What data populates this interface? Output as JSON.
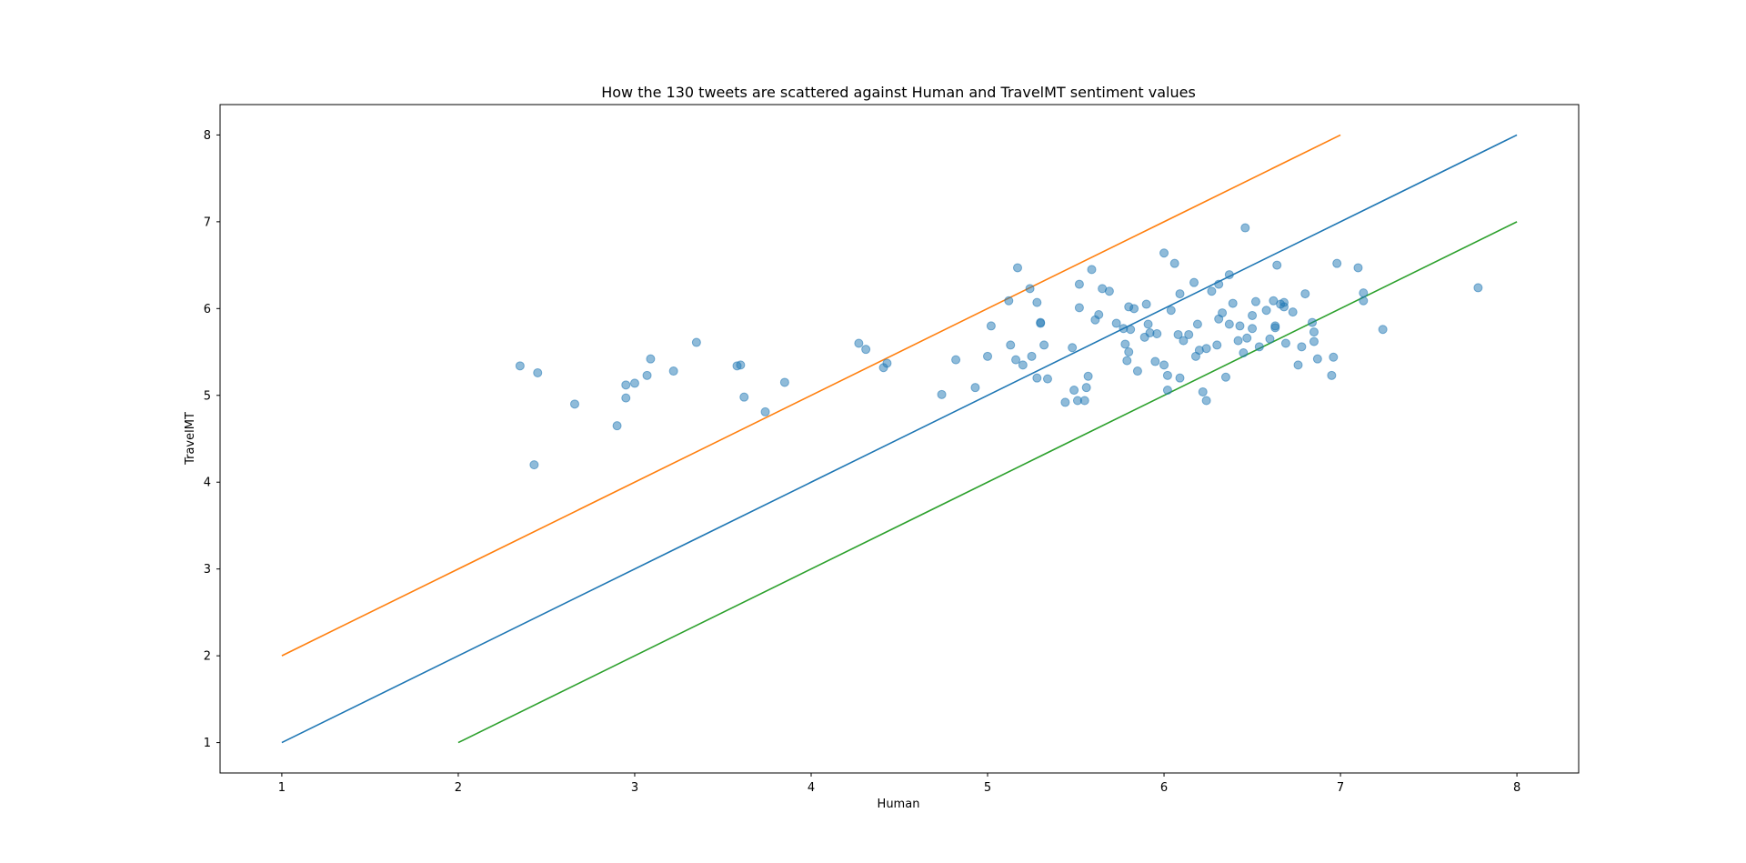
{
  "chart_data": {
    "type": "scatter",
    "title": "How the 130 tweets are scattered against Human and TravelMT sentiment values",
    "xlabel": "Human",
    "ylabel": "TravelMT",
    "xlim": [
      0.65,
      8.35
    ],
    "ylim": [
      0.65,
      8.35
    ],
    "xticks": [
      1,
      2,
      3,
      4,
      5,
      6,
      7,
      8
    ],
    "yticks": [
      1,
      2,
      3,
      4,
      5,
      6,
      7,
      8
    ],
    "grid": false,
    "colors": {
      "points": "#1f77b4",
      "diagonal": "#1f77b4",
      "upper": "#ff7f0e",
      "lower": "#2ca02c"
    },
    "lines": [
      {
        "id": "diagonal",
        "x": [
          1,
          8
        ],
        "y": [
          1,
          8
        ]
      },
      {
        "id": "upper",
        "x": [
          1,
          7
        ],
        "y": [
          2,
          8
        ]
      },
      {
        "id": "lower",
        "x": [
          2,
          8
        ],
        "y": [
          1,
          7
        ]
      }
    ],
    "points": [
      [
        2.35,
        5.34
      ],
      [
        2.45,
        5.26
      ],
      [
        2.43,
        4.2
      ],
      [
        2.66,
        4.9
      ],
      [
        2.9,
        4.65
      ],
      [
        2.95,
        4.97
      ],
      [
        2.95,
        5.12
      ],
      [
        3.0,
        5.14
      ],
      [
        3.07,
        5.23
      ],
      [
        3.09,
        5.42
      ],
      [
        3.22,
        5.28
      ],
      [
        3.35,
        5.61
      ],
      [
        3.58,
        5.34
      ],
      [
        3.6,
        5.35
      ],
      [
        3.62,
        4.98
      ],
      [
        3.74,
        4.81
      ],
      [
        3.85,
        5.15
      ],
      [
        4.27,
        5.6
      ],
      [
        4.31,
        5.53
      ],
      [
        4.41,
        5.32
      ],
      [
        4.43,
        5.37
      ],
      [
        4.74,
        5.01
      ],
      [
        4.82,
        5.41
      ],
      [
        4.93,
        5.09
      ],
      [
        5.0,
        5.45
      ],
      [
        5.02,
        5.8
      ],
      [
        5.12,
        6.09
      ],
      [
        5.13,
        5.58
      ],
      [
        5.16,
        5.41
      ],
      [
        5.17,
        6.47
      ],
      [
        5.2,
        5.35
      ],
      [
        5.24,
        6.23
      ],
      [
        5.25,
        5.45
      ],
      [
        5.28,
        6.07
      ],
      [
        5.28,
        5.2
      ],
      [
        5.3,
        5.83
      ],
      [
        5.3,
        5.84
      ],
      [
        5.32,
        5.58
      ],
      [
        5.34,
        5.19
      ],
      [
        5.44,
        4.92
      ],
      [
        5.48,
        5.55
      ],
      [
        5.49,
        5.06
      ],
      [
        5.51,
        4.94
      ],
      [
        5.52,
        6.01
      ],
      [
        5.52,
        6.28
      ],
      [
        5.55,
        4.94
      ],
      [
        5.56,
        5.09
      ],
      [
        5.57,
        5.22
      ],
      [
        5.59,
        6.45
      ],
      [
        5.61,
        5.87
      ],
      [
        5.63,
        5.93
      ],
      [
        5.65,
        6.23
      ],
      [
        5.69,
        6.2
      ],
      [
        5.73,
        5.83
      ],
      [
        5.77,
        5.77
      ],
      [
        5.78,
        5.59
      ],
      [
        5.79,
        5.4
      ],
      [
        5.8,
        5.5
      ],
      [
        5.8,
        6.02
      ],
      [
        5.81,
        5.76
      ],
      [
        5.83,
        6.0
      ],
      [
        5.85,
        5.28
      ],
      [
        5.89,
        5.67
      ],
      [
        5.9,
        6.05
      ],
      [
        5.91,
        5.82
      ],
      [
        5.92,
        5.72
      ],
      [
        5.95,
        5.39
      ],
      [
        5.96,
        5.71
      ],
      [
        6.0,
        6.64
      ],
      [
        6.0,
        5.35
      ],
      [
        6.02,
        5.06
      ],
      [
        6.02,
        5.23
      ],
      [
        6.04,
        5.98
      ],
      [
        6.06,
        6.52
      ],
      [
        6.08,
        5.7
      ],
      [
        6.09,
        5.2
      ],
      [
        6.09,
        6.17
      ],
      [
        6.11,
        5.63
      ],
      [
        6.14,
        5.7
      ],
      [
        6.17,
        6.3
      ],
      [
        6.18,
        5.45
      ],
      [
        6.19,
        5.82
      ],
      [
        6.2,
        5.52
      ],
      [
        6.22,
        5.04
      ],
      [
        6.24,
        4.94
      ],
      [
        6.24,
        5.54
      ],
      [
        6.27,
        6.2
      ],
      [
        6.3,
        5.58
      ],
      [
        6.31,
        5.88
      ],
      [
        6.31,
        6.28
      ],
      [
        6.33,
        5.95
      ],
      [
        6.35,
        5.21
      ],
      [
        6.37,
        6.39
      ],
      [
        6.37,
        5.82
      ],
      [
        6.39,
        6.06
      ],
      [
        6.42,
        5.63
      ],
      [
        6.43,
        5.8
      ],
      [
        6.45,
        5.49
      ],
      [
        6.46,
        6.93
      ],
      [
        6.47,
        5.66
      ],
      [
        6.5,
        5.92
      ],
      [
        6.5,
        5.77
      ],
      [
        6.52,
        6.08
      ],
      [
        6.54,
        5.56
      ],
      [
        6.58,
        5.98
      ],
      [
        6.6,
        5.65
      ],
      [
        6.62,
        6.09
      ],
      [
        6.63,
        5.78
      ],
      [
        6.64,
        6.5
      ],
      [
        6.66,
        6.05
      ],
      [
        6.68,
        6.07
      ],
      [
        6.68,
        6.02
      ],
      [
        6.69,
        5.6
      ],
      [
        6.73,
        5.96
      ],
      [
        6.76,
        5.35
      ],
      [
        6.78,
        5.56
      ],
      [
        6.8,
        6.17
      ],
      [
        6.84,
        5.84
      ],
      [
        6.85,
        5.62
      ],
      [
        6.85,
        5.73
      ],
      [
        6.87,
        5.42
      ],
      [
        6.95,
        5.23
      ],
      [
        6.96,
        5.44
      ],
      [
        6.98,
        6.52
      ],
      [
        7.1,
        6.47
      ],
      [
        7.13,
        6.18
      ],
      [
        7.13,
        6.09
      ],
      [
        7.24,
        5.76
      ],
      [
        7.78,
        6.24
      ],
      [
        6.63,
        5.8
      ]
    ]
  }
}
